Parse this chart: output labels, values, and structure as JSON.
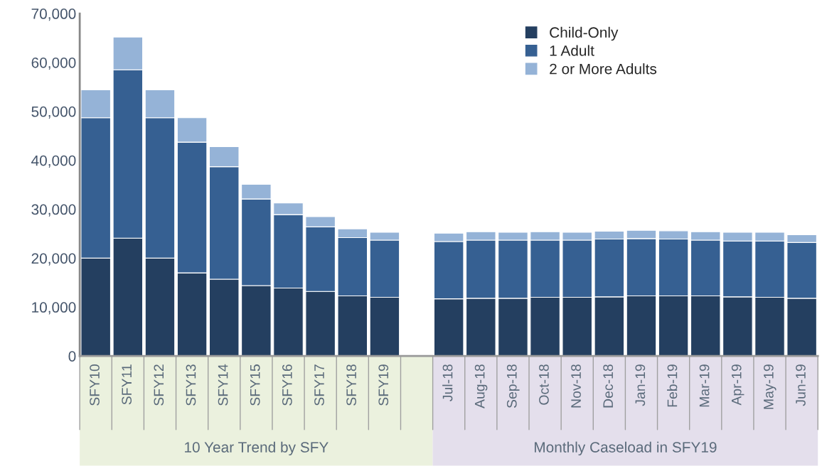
{
  "chart_data": {
    "type": "bar",
    "stacked": true,
    "categories": [
      "SFY10",
      "SFY11",
      "SFY12",
      "SFY13",
      "SFY14",
      "SFY15",
      "SFY16",
      "SFY17",
      "SFY18",
      "SFY19",
      null,
      "Jul-18",
      "Aug-18",
      "Sep-18",
      "Oct-18",
      "Nov-18",
      "Dec-18",
      "Jan-19",
      "Feb-19",
      "Mar-19",
      "Apr-19",
      "May-19",
      "Jun-19"
    ],
    "series": [
      {
        "name": "Child-Only",
        "color": "#243f60",
        "values": [
          20000,
          24100,
          20000,
          17000,
          15700,
          14400,
          13900,
          13200,
          12300,
          12000,
          null,
          11700,
          11800,
          11800,
          12000,
          12000,
          12100,
          12300,
          12300,
          12300,
          12100,
          12000,
          11800
        ]
      },
      {
        "name": "1 Adult",
        "color": "#366092",
        "values": [
          28700,
          34400,
          28700,
          26700,
          23000,
          17700,
          15000,
          13200,
          11900,
          11700,
          null,
          11700,
          11900,
          11900,
          11700,
          11700,
          11800,
          11700,
          11600,
          11400,
          11400,
          11500,
          11400
        ]
      },
      {
        "name": "2 or More Adults",
        "color": "#95b3d7",
        "values": [
          5700,
          6700,
          5700,
          5000,
          4100,
          3000,
          2400,
          2100,
          1800,
          1600,
          null,
          1700,
          1700,
          1600,
          1700,
          1600,
          1600,
          1700,
          1700,
          1700,
          1800,
          1800,
          1600
        ]
      }
    ],
    "ylim": [
      0,
      70000
    ],
    "yticks": [
      {
        "value": 0,
        "label": "0"
      },
      {
        "value": 10000,
        "label": "10,000"
      },
      {
        "value": 20000,
        "label": "20,000"
      },
      {
        "value": 30000,
        "label": "30,000"
      },
      {
        "value": 40000,
        "label": "40,000"
      },
      {
        "value": 50000,
        "label": "50,000"
      },
      {
        "value": 60000,
        "label": "60,000"
      },
      {
        "value": 70000,
        "label": "70,000"
      }
    ],
    "annotations": [
      "10 Year Trend by SFY",
      "Monthly Caseload in SFY19"
    ],
    "grid": false,
    "legend": "top right"
  }
}
